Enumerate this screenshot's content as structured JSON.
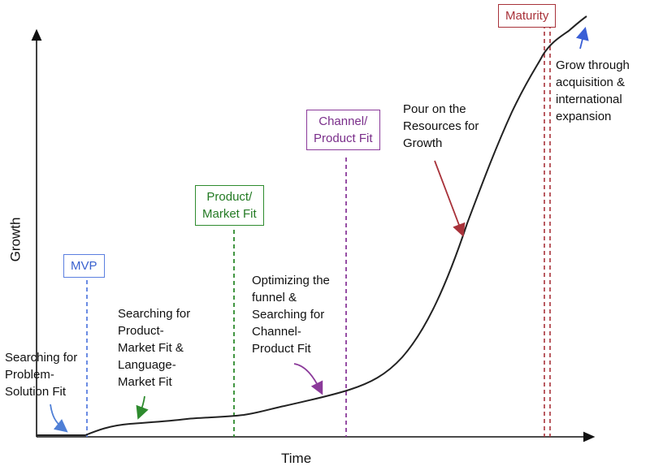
{
  "axes": {
    "x_label": "Time",
    "y_label": "Growth"
  },
  "colors": {
    "axis": "#111111",
    "curve": "#222222",
    "mvp": "#5b7fe0",
    "pmf": "#2e8b2e",
    "channel": "#8b3a9a",
    "maturity": "#a8323a",
    "problem_arrow": "#4f7fd6",
    "grow_arrow": "#3a5fd6"
  },
  "milestones": [
    {
      "id": "mvp",
      "lines": [
        "MVP"
      ]
    },
    {
      "id": "pmf",
      "lines": [
        "Product/",
        "Market Fit"
      ]
    },
    {
      "id": "channel",
      "lines": [
        "Channel/",
        "Product Fit"
      ]
    },
    {
      "id": "maturity",
      "lines": [
        "Maturity"
      ]
    }
  ],
  "annotations": [
    {
      "id": "problem",
      "lines": [
        "Searching for",
        "Problem-",
        "Solution Fit"
      ]
    },
    {
      "id": "product",
      "lines": [
        "Searching for",
        "Product-",
        "Market Fit &",
        "Language-",
        "Market Fit"
      ]
    },
    {
      "id": "funnel",
      "lines": [
        "Optimizing the",
        "funnel &",
        "Searching for",
        "Channel-",
        "Product Fit"
      ]
    },
    {
      "id": "resources",
      "lines": [
        "Pour on the",
        "Resources for",
        "Growth"
      ]
    },
    {
      "id": "grow",
      "lines": [
        "Grow through",
        "acquisition &",
        "international",
        "expansion"
      ]
    }
  ]
}
